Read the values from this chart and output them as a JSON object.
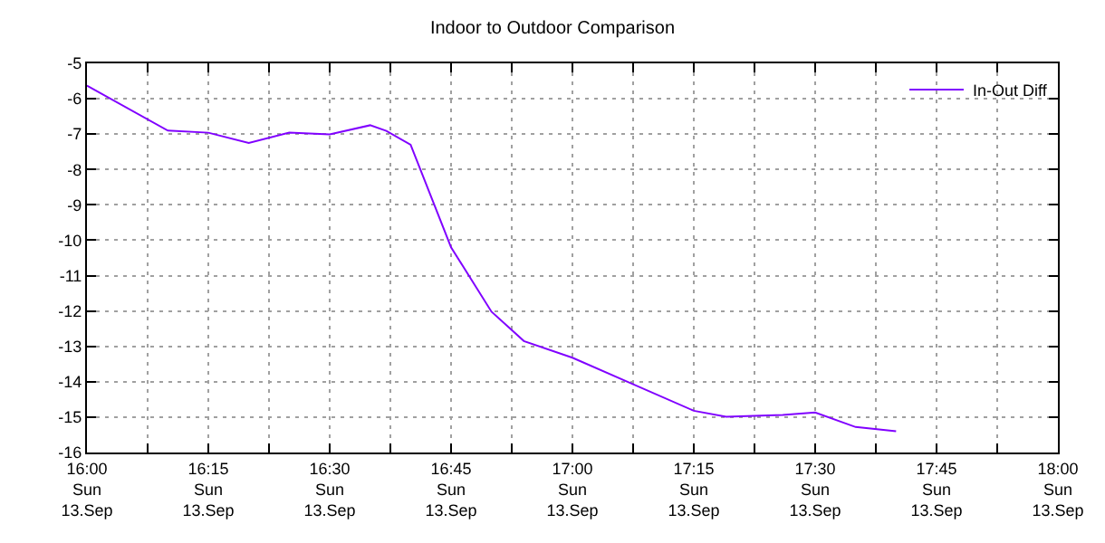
{
  "chart_data": {
    "type": "line",
    "title": "Indoor to Outdoor Comparison",
    "x": [
      "--09-13T16:00",
      "--09-13T16:10",
      "--09-13T16:15",
      "--09-13T16:20",
      "--09-13T16:25",
      "--09-13T16:30",
      "--09-13T16:35",
      "--09-13T16:37",
      "--09-13T16:40",
      "--09-13T16:45",
      "--09-13T16:50",
      "--09-13T16:54",
      "--09-13T17:00",
      "--09-13T17:07",
      "--09-13T17:15",
      "--09-13T17:19",
      "--09-13T17:26",
      "--09-13T17:30",
      "--09-13T17:35",
      "--09-13T17:40"
    ],
    "series": [
      {
        "name": "In-Out Diff",
        "color": "#8000ff",
        "values": [
          -5.63,
          -6.9,
          -6.96,
          -7.25,
          -6.96,
          -7.01,
          -6.75,
          -6.91,
          -7.3,
          -10.2,
          -12.02,
          -12.85,
          -13.32,
          -14.02,
          -14.82,
          -14.99,
          -14.94,
          -14.87,
          -15.28,
          -15.4
        ]
      }
    ],
    "xlim": [
      "--09-13T16:00",
      "--09-13T18:00"
    ],
    "xticks": [
      {
        "value": "--09-13T16:00",
        "label": "16:00\nSun\n13.Sep"
      },
      {
        "value": "--09-13T16:07:30",
        "label": null
      },
      {
        "value": "--09-13T16:15",
        "label": "16:15\nSun\n13.Sep"
      },
      {
        "value": "--09-13T16:22:30",
        "label": null
      },
      {
        "value": "--09-13T16:30",
        "label": "16:30\nSun\n13.Sep"
      },
      {
        "value": "--09-13T16:37:30",
        "label": null
      },
      {
        "value": "--09-13T16:45",
        "label": "16:45\nSun\n13.Sep"
      },
      {
        "value": "--09-13T16:52:30",
        "label": null
      },
      {
        "value": "--09-13T17:00",
        "label": "17:00\nSun\n13.Sep"
      },
      {
        "value": "--09-13T17:07:30",
        "label": null
      },
      {
        "value": "--09-13T17:15",
        "label": "17:15\nSun\n13.Sep"
      },
      {
        "value": "--09-13T17:22:30",
        "label": null
      },
      {
        "value": "--09-13T17:30",
        "label": "17:30\nSun\n13.Sep"
      },
      {
        "value": "--09-13T17:37:30",
        "label": null
      },
      {
        "value": "--09-13T17:45",
        "label": "17:45\nSun\n13.Sep"
      },
      {
        "value": "--09-13T17:52:30",
        "label": null
      },
      {
        "value": "--09-13T18:00",
        "label": "18:00\nSun\n13.Sep"
      }
    ],
    "ylim": [
      -16,
      -5
    ],
    "yticks": [
      -16,
      -15,
      -14,
      -13,
      -12,
      -11,
      -10,
      -9,
      -8,
      -7,
      -6,
      -5
    ],
    "grid": true,
    "legend": "top right",
    "marker": "none",
    "line_style": "solid"
  }
}
